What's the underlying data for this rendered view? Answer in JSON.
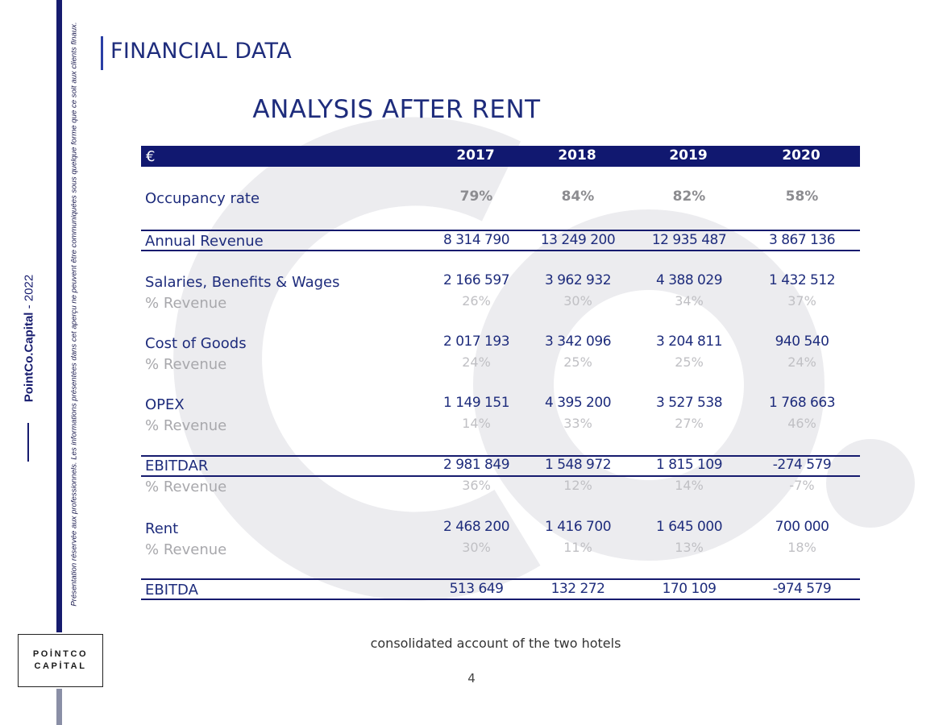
{
  "colors": {
    "navy": "#161b6e",
    "title": "#1e2c7c",
    "header_bg": "#111870",
    "watermark": "#ececef"
  },
  "sidebar": {
    "disclaimer": "Présentation réservée aux professionnels. Les informations présentées dans cet aperçu ne peuvent être communiquées sous quelque forme que ce soit aux clients finaux.",
    "brand_name": "PointCo.Capital",
    "brand_separator": "-",
    "brand_year": "2022"
  },
  "logo": {
    "line1": "POİNTCO",
    "line2": "CAPİTAL"
  },
  "page": {
    "title": "FINANCIAL DATA",
    "section_title": "ANALYSIS AFTER RENT"
  },
  "table": {
    "currency": "€",
    "years": [
      "2017",
      "2018",
      "2019",
      "2020"
    ],
    "occupancy": {
      "label": "Occupancy rate",
      "values": [
        "79%",
        "84%",
        "82%",
        "58%"
      ]
    },
    "annual_revenue": {
      "label": "Annual Revenue",
      "values": [
        "8 314 790",
        "13 249 200",
        "12 935 487",
        "3 867 136"
      ]
    },
    "salaries": {
      "label": "Salaries, Benefits & Wages",
      "values": [
        "2 166 597",
        "3 962 932",
        "4 388 029",
        "1 432 512"
      ],
      "pct_label": "% Revenue",
      "pcts": [
        "26%",
        "30%",
        "34%",
        "37%"
      ]
    },
    "cost_of_goods": {
      "label": "Cost of Goods",
      "values": [
        "2 017 193",
        "3 342 096",
        "3 204 811",
        "940 540"
      ],
      "pct_label": "% Revenue",
      "pcts": [
        "24%",
        "25%",
        "25%",
        "24%"
      ]
    },
    "opex": {
      "label": "OPEX",
      "values": [
        "1 149 151",
        "4 395 200",
        "3 527 538",
        "1 768 663"
      ],
      "pct_label": "% Revenue",
      "pcts": [
        "14%",
        "33%",
        "27%",
        "46%"
      ]
    },
    "ebitdar": {
      "label": "EBITDAR",
      "values": [
        "2 981 849",
        "1 548 972",
        "1 815 109",
        "-274 579"
      ],
      "pct_label": "% Revenue",
      "pcts": [
        "36%",
        "12%",
        "14%",
        "-7%"
      ]
    },
    "rent": {
      "label": "Rent",
      "values": [
        "2 468 200",
        "1 416 700",
        "1 645 000",
        "700 000"
      ],
      "pct_label": "% Revenue",
      "pcts": [
        "30%",
        "11%",
        "13%",
        "18%"
      ]
    },
    "ebitda": {
      "label": "EBITDA",
      "values": [
        "513 649",
        "132 272",
        "170 109",
        "-974 579"
      ]
    }
  },
  "footer": {
    "note": "consolidated account of the two hotels",
    "page_number": "4"
  }
}
